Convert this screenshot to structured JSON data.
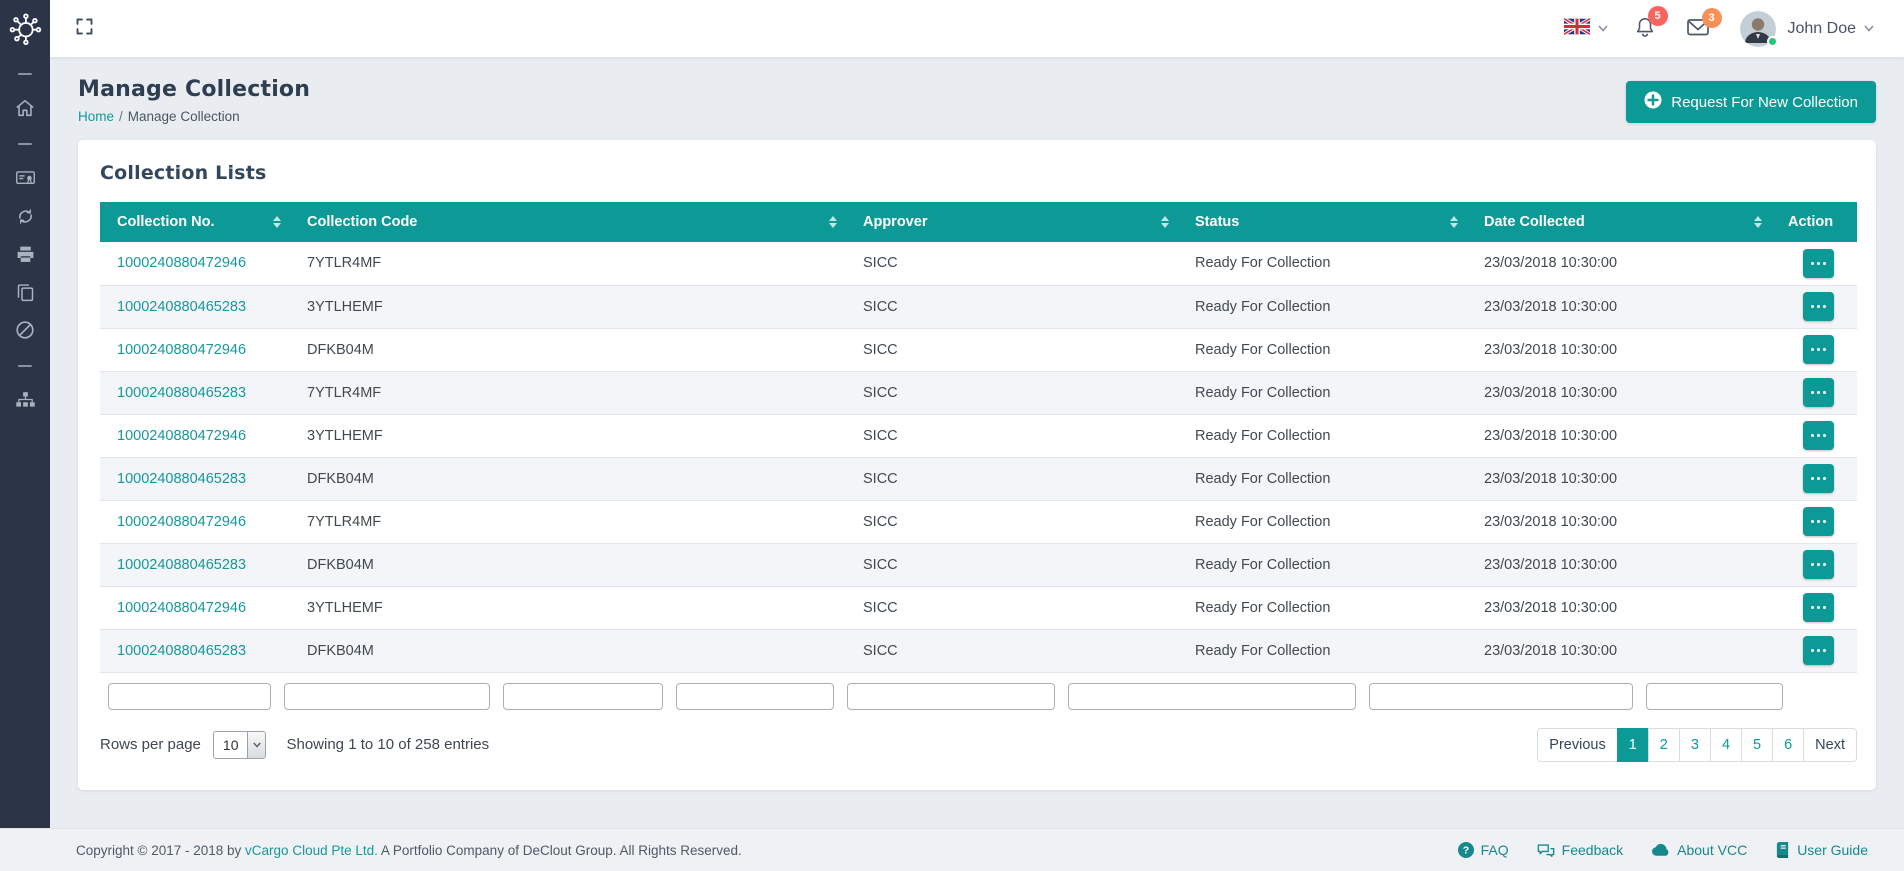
{
  "theme": {
    "accent": "#0d9a96",
    "sidebar": "#2b3547",
    "badge_red": "#f8655f",
    "badge_orange": "#f99157"
  },
  "topbar": {
    "icons": [
      "fullscreen-icon",
      "uk-flag-icon",
      "chevron-down-icon",
      "bell-icon",
      "envelope-icon"
    ],
    "notifications_count": "5",
    "messages_count": "3",
    "user": {
      "name": "John Doe",
      "status": "online"
    }
  },
  "sidebar": {
    "icons": [
      "molecule-logo",
      "home-icon",
      "certificate-icon",
      "sync-icon",
      "printer-icon",
      "copy-icon",
      "ban-icon",
      "sitemap-icon"
    ]
  },
  "page_header": {
    "title": "Manage Collection",
    "breadcrumb": {
      "home": "Home",
      "separator": "/",
      "current": "Manage Collection"
    },
    "new_collection_button": "Request For New Collection"
  },
  "card": {
    "title": "Collection Lists",
    "table": {
      "columns": [
        {
          "label": "Collection No.",
          "sortable": true
        },
        {
          "label": "Collection Code",
          "sortable": true
        },
        {
          "label": "Approver",
          "sortable": true
        },
        {
          "label": "Status",
          "sortable": true
        },
        {
          "label": "Date Collected",
          "sortable": true
        },
        {
          "label": "Action",
          "sortable": false
        }
      ],
      "rows": [
        {
          "collection_no": "1000240880472946",
          "collection_code": "7YTLR4MF",
          "approver": "SICC",
          "status": "Ready For Collection",
          "date_collected": "23/03/2018 10:30:00"
        },
        {
          "collection_no": "1000240880465283",
          "collection_code": "3YTLHEMF",
          "approver": "SICC",
          "status": "Ready For Collection",
          "date_collected": "23/03/2018 10:30:00"
        },
        {
          "collection_no": "1000240880472946",
          "collection_code": "DFKB04M",
          "approver": "SICC",
          "status": "Ready For Collection",
          "date_collected": "23/03/2018 10:30:00"
        },
        {
          "collection_no": "1000240880465283",
          "collection_code": "7YTLR4MF",
          "approver": "SICC",
          "status": "Ready For Collection",
          "date_collected": "23/03/2018 10:30:00"
        },
        {
          "collection_no": "1000240880472946",
          "collection_code": "3YTLHEMF",
          "approver": "SICC",
          "status": "Ready For Collection",
          "date_collected": "23/03/2018 10:30:00"
        },
        {
          "collection_no": "1000240880465283",
          "collection_code": "DFKB04M",
          "approver": "SICC",
          "status": "Ready For Collection",
          "date_collected": "23/03/2018 10:30:00"
        },
        {
          "collection_no": "1000240880472946",
          "collection_code": "7YTLR4MF",
          "approver": "SICC",
          "status": "Ready For Collection",
          "date_collected": "23/03/2018 10:30:00"
        },
        {
          "collection_no": "1000240880465283",
          "collection_code": "DFKB04M",
          "approver": "SICC",
          "status": "Ready For Collection",
          "date_collected": "23/03/2018 10:30:00"
        },
        {
          "collection_no": "1000240880472946",
          "collection_code": "3YTLHEMF",
          "approver": "SICC",
          "status": "Ready For Collection",
          "date_collected": "23/03/2018 10:30:00"
        },
        {
          "collection_no": "1000240880465283",
          "collection_code": "DFKB04M",
          "approver": "SICC",
          "status": "Ready For Collection",
          "date_collected": "23/03/2018 10:30:00"
        }
      ],
      "action_icon": "ellipsis-icon"
    },
    "filters": [
      "",
      "",
      "",
      "",
      "",
      "",
      "",
      ""
    ],
    "table_footer": {
      "rows_per_page_label": "Rows per page",
      "rows_per_page_value": "10",
      "showing_text": "Showing 1 to 10 of  258 entries"
    },
    "pagination": {
      "previous": "Previous",
      "pages": [
        "1",
        "2",
        "3",
        "4",
        "5",
        "6"
      ],
      "active": "1",
      "next": "Next"
    }
  },
  "footer": {
    "copyright_prefix": "Copyright © 2017 - 2018 by ",
    "company_link": "vCargo Cloud Pte Ltd.",
    "copyright_suffix": " A Portfolio Company of DeClout Group. All Rights Reserved.",
    "links": [
      {
        "icon": "question-circle-icon",
        "label": "FAQ"
      },
      {
        "icon": "comments-icon",
        "label": "Feedback"
      },
      {
        "icon": "cloud-icon",
        "label": "About VCC"
      },
      {
        "icon": "book-icon",
        "label": "User Guide"
      }
    ]
  }
}
